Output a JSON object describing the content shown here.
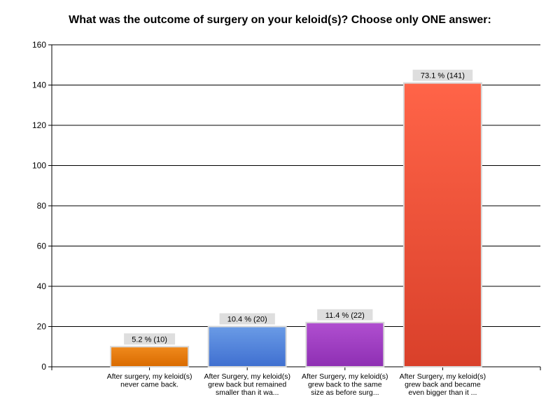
{
  "chart_data": {
    "type": "bar",
    "title": "What was the outcome of surgery on your keloid(s)? Choose only ONE answer:",
    "categories": [
      [
        "After surgery, my keloid(s)",
        "never came back."
      ],
      [
        "After Surgery, my keloid(s)",
        "grew back but remained",
        "smaller than it wa..."
      ],
      [
        "After Surgery, my keloid(s)",
        "grew back to the same",
        "size as before surg..."
      ],
      [
        "After Surgery, my keloid(s)",
        "grew back and became",
        "even bigger than it ..."
      ]
    ],
    "values": [
      10,
      20,
      22,
      141
    ],
    "data_labels": [
      "5.2 % (10)",
      "10.4 % (20)",
      "11.4 % (22)",
      "73.1 % (141)"
    ],
    "bar_colors": [
      [
        "#f08a1c",
        "#d96a00"
      ],
      [
        "#6a9be6",
        "#3f6fd0"
      ],
      [
        "#b04fd0",
        "#8e2fb3"
      ],
      [
        "#ff6448",
        "#d9402a"
      ]
    ],
    "ylim": [
      0,
      160
    ],
    "yticks": [
      0,
      20,
      40,
      60,
      80,
      100,
      120,
      140,
      160
    ],
    "grid": true,
    "legend": "none"
  }
}
